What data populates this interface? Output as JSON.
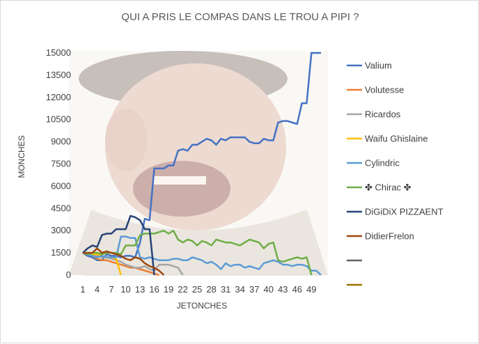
{
  "chart_data": {
    "type": "line",
    "title": "QUI A PRIS LE COMPAS DANS LE TROU A PIPI ?",
    "xlabel": "JETONCHES",
    "ylabel": "MONCHES",
    "ylim": [
      0,
      15000
    ],
    "yticks": [
      "0",
      "1500",
      "3000",
      "4500",
      "6000",
      "7500",
      "9000",
      "10500",
      "12000",
      "13500",
      "15000"
    ],
    "xticks": [
      "1",
      "4",
      "7",
      "10",
      "13",
      "16",
      "19",
      "22",
      "25",
      "28",
      "31",
      "34",
      "37",
      "40",
      "43",
      "46",
      "49"
    ],
    "xlim": [
      1,
      51
    ],
    "grid": false,
    "legend_position": "right",
    "series": [
      {
        "name": "Valium",
        "color": "#4472C4",
        "x": [
          1,
          2,
          3,
          4,
          5,
          6,
          7,
          8,
          9,
          10,
          11,
          12,
          13,
          14,
          15,
          16,
          17,
          18,
          19,
          20,
          21,
          22,
          23,
          24,
          25,
          26,
          27,
          28,
          29,
          30,
          31,
          32,
          33,
          34,
          35,
          36,
          37,
          38,
          39,
          40,
          41,
          42,
          43,
          44,
          45,
          46,
          47,
          48,
          49,
          50,
          51
        ],
        "y": [
          1500,
          1300,
          1200,
          1000,
          1000,
          1400,
          1300,
          1300,
          1200,
          1300,
          1300,
          1200,
          2200,
          3800,
          3700,
          7200,
          7200,
          7200,
          7400,
          7400,
          8400,
          8500,
          8400,
          8800,
          8800,
          9000,
          9200,
          9100,
          8800,
          9200,
          9100,
          9300,
          9300,
          9300,
          9300,
          9000,
          8900,
          8900,
          9200,
          9100,
          9100,
          10300,
          10400,
          10400,
          10300,
          10200,
          11600,
          11600,
          15000,
          15000,
          15000
        ]
      },
      {
        "name": "Volutesse",
        "color": "#ED7D31",
        "x": [
          1,
          2,
          3,
          4,
          5,
          6,
          7,
          8,
          9,
          10,
          11,
          12,
          13,
          14,
          15,
          16,
          17
        ],
        "y": [
          1500,
          1400,
          1300,
          1100,
          1000,
          1000,
          900,
          800,
          700,
          600,
          500,
          500,
          400,
          300,
          200,
          100,
          0
        ]
      },
      {
        "name": "Ricardos",
        "color": "#A5A5A5",
        "x": [
          1,
          2,
          3,
          4,
          5,
          6,
          7,
          8,
          9,
          10,
          11,
          12,
          13,
          14,
          15,
          16,
          17,
          18,
          19,
          20,
          21,
          22
        ],
        "y": [
          1500,
          1400,
          1300,
          1300,
          1200,
          1200,
          1100,
          1000,
          900,
          700,
          600,
          500,
          500,
          600,
          400,
          300,
          700,
          700,
          700,
          600,
          500,
          0
        ]
      },
      {
        "name": "Waifu Ghislaine",
        "color": "#FFC000",
        "x": [
          1,
          2,
          3,
          4,
          5,
          6,
          7,
          8,
          9
        ],
        "y": [
          1500,
          1500,
          1400,
          1400,
          1300,
          1200,
          1200,
          1100,
          0
        ]
      },
      {
        "name": "Cylindric",
        "color": "#5B9BD5",
        "x": [
          1,
          2,
          3,
          4,
          5,
          6,
          7,
          8,
          9,
          10,
          11,
          12,
          13,
          14,
          15,
          16,
          17,
          18,
          19,
          20,
          21,
          22,
          23,
          24,
          25,
          26,
          27,
          28,
          29,
          30,
          31,
          32,
          33,
          34,
          35,
          36,
          37,
          38,
          39,
          40,
          41,
          42,
          43,
          44,
          45,
          46,
          47,
          48,
          49,
          50,
          51
        ],
        "y": [
          1500,
          1400,
          1300,
          1200,
          1300,
          1200,
          1200,
          1200,
          2600,
          2600,
          2500,
          2500,
          1200,
          1100,
          1200,
          1100,
          1000,
          1000,
          1000,
          1100,
          1100,
          1000,
          1000,
          1200,
          1100,
          1000,
          800,
          900,
          700,
          400,
          800,
          600,
          700,
          700,
          500,
          600,
          500,
          400,
          800,
          900,
          1000,
          900,
          700,
          700,
          600,
          700,
          700,
          600,
          300,
          300,
          0
        ]
      },
      {
        "name": "✤ Chirac ✤",
        "color": "#70AD47",
        "x": [
          1,
          2,
          3,
          4,
          5,
          6,
          7,
          8,
          9,
          10,
          11,
          12,
          13,
          14,
          15,
          16,
          17,
          18,
          19,
          20,
          21,
          22,
          23,
          24,
          25,
          26,
          27,
          28,
          29,
          30,
          31,
          32,
          33,
          34,
          35,
          36,
          37,
          38,
          39,
          40,
          41,
          42,
          43,
          44,
          45,
          46,
          47,
          48,
          49
        ],
        "y": [
          1500,
          1400,
          1500,
          1500,
          1400,
          1500,
          1500,
          1500,
          1400,
          2000,
          2000,
          2000,
          2700,
          2800,
          2800,
          2800,
          2900,
          3000,
          2800,
          3000,
          2400,
          2200,
          2400,
          2300,
          2000,
          2300,
          2200,
          2000,
          2400,
          2300,
          2200,
          2200,
          2100,
          2000,
          2200,
          2400,
          2300,
          2200,
          1800,
          2100,
          2200,
          1000,
          900,
          1000,
          1100,
          1200,
          1100,
          1200,
          0
        ]
      },
      {
        "name": "DiGiDiX PIZZAENT",
        "color": "#264478",
        "x": [
          1,
          2,
          3,
          4,
          5,
          6,
          7,
          8,
          9,
          10,
          11,
          12,
          13,
          14,
          15,
          16
        ],
        "y": [
          1500,
          1800,
          2000,
          1900,
          2700,
          2800,
          2800,
          3100,
          3100,
          3100,
          4000,
          3900,
          3700,
          3100,
          3100,
          0
        ]
      },
      {
        "name": "DidierFrelon",
        "color": "#9E480E",
        "x": [
          1,
          2,
          3,
          4,
          5,
          6,
          7,
          8,
          9,
          10,
          11,
          12,
          13,
          14,
          15,
          16,
          17,
          18
        ],
        "y": [
          1500,
          1500,
          1500,
          1800,
          1500,
          1600,
          1500,
          1400,
          1300,
          1100,
          1000,
          1200,
          1100,
          800,
          600,
          500,
          300,
          0
        ]
      },
      {
        "name": "",
        "color": "#636363",
        "x": [],
        "y": []
      },
      {
        "name": "",
        "color": "#997300",
        "x": [],
        "y": []
      }
    ]
  }
}
